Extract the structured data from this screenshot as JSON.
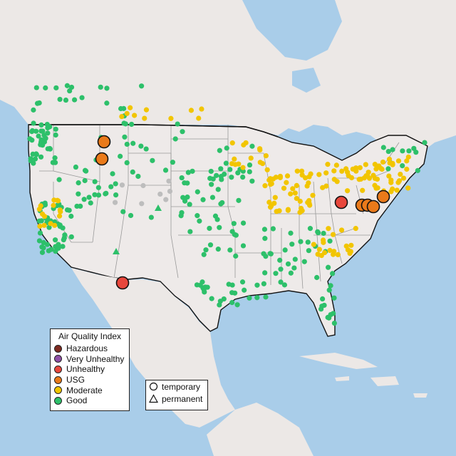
{
  "legend": {
    "title": "Air Quality Index",
    "categories": [
      {
        "label": "Hazardous",
        "color": "#7e2a20"
      },
      {
        "label": "Very Unhealthy",
        "color": "#8f4fa6"
      },
      {
        "label": "Unhealthy",
        "color": "#e8473c"
      },
      {
        "label": "USG",
        "color": "#ea7a1a"
      },
      {
        "label": "Moderate",
        "color": "#f2c500"
      },
      {
        "label": "Good",
        "color": "#2dc06a"
      }
    ]
  },
  "site_legend": {
    "items": [
      {
        "label": "temporary",
        "icon": "circle-icon"
      },
      {
        "label": "permanent",
        "icon": "triangle-icon"
      }
    ]
  },
  "colors": {
    "water": "#a9cde9",
    "land": "#ece8e6",
    "us_land": "#eeeae9",
    "good": "#2dc06a",
    "moderate": "#f2c500",
    "usg": "#ea7a1a",
    "unhealthy": "#e8473c",
    "no_data": "#bdbdbd"
  }
}
